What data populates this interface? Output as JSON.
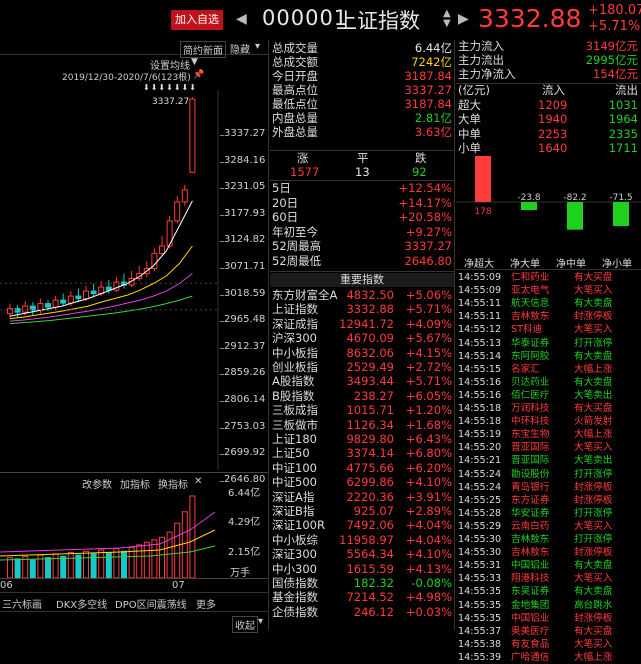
{
  "header": {
    "add_label": "加入自选",
    "code": "000001",
    "name": "上证指数",
    "price": "3332.88",
    "change": "+180.07",
    "change_pct": "+5.71%"
  },
  "chart": {
    "tabs": [
      "简约新面",
      "隐藏"
    ],
    "settings_label": "设置均线",
    "date_range": "2019/12/30-2020/7/6(123根)",
    "price_marker": "3337.27",
    "y_labels": [
      "3337.27",
      "3284.16",
      "3231.05",
      "3177.93",
      "3124.82",
      "3071.71",
      "3018.59",
      "2965.48",
      "2912.37",
      "2859.26",
      "2806.14",
      "2753.03",
      "2699.92",
      "2646.80"
    ],
    "sub_tabs": [
      "改参数",
      "加指标",
      "换指标"
    ],
    "vol_labels": [
      "6.44亿",
      "4.29亿",
      "2.15亿",
      "万手"
    ],
    "x_labels": [
      "06",
      "07"
    ],
    "bottom_tabs": [
      "三六标画",
      "DKX多空线",
      "DPO区间震荡线",
      "更多"
    ],
    "collapse_label": "收起"
  },
  "stats": [
    {
      "label": "总成交量",
      "value": "6.44亿",
      "color": "white"
    },
    {
      "label": "总成交额",
      "value": "7242亿",
      "color": "yellow"
    },
    {
      "label": "今日开盘",
      "value": "3187.84",
      "color": "red"
    },
    {
      "label": "最高点位",
      "value": "3337.27",
      "color": "red"
    },
    {
      "label": "最低点位",
      "value": "3187.84",
      "color": "red"
    },
    {
      "label": "内盘总量",
      "value": "2.81亿",
      "color": "green"
    },
    {
      "label": "外盘总量",
      "value": "3.63亿",
      "color": "red"
    }
  ],
  "adv": {
    "labels": [
      "涨",
      "平",
      "跌"
    ],
    "values": [
      "1577",
      "13",
      "92"
    ]
  },
  "perf": [
    {
      "label": "5日",
      "value": "+12.54%"
    },
    {
      "label": "20日",
      "value": "+14.17%"
    },
    {
      "label": "60日",
      "value": "+20.58%"
    },
    {
      "label": "年初至今",
      "value": "+9.27%"
    },
    {
      "label": "52周最高",
      "value": "3337.27"
    },
    {
      "label": "52周最低",
      "value": "2646.80"
    }
  ],
  "index_title": "重要指数",
  "indices": [
    {
      "name": "东方财富全A",
      "price": "4832.50",
      "pct": "+5.06%"
    },
    {
      "name": "上证指数",
      "price": "3332.88",
      "pct": "+5.71%"
    },
    {
      "name": "深证成指",
      "price": "12941.72",
      "pct": "+4.09%"
    },
    {
      "name": "沪深300",
      "price": "4670.09",
      "pct": "+5.67%"
    },
    {
      "name": "中小板指",
      "price": "8632.06",
      "pct": "+4.15%"
    },
    {
      "name": "创业板指",
      "price": "2529.49",
      "pct": "+2.72%"
    },
    {
      "name": "A股指数",
      "price": "3493.44",
      "pct": "+5.71%"
    },
    {
      "name": "B股指数",
      "price": "238.27",
      "pct": "+6.05%"
    },
    {
      "name": "三板成指",
      "price": "1015.71",
      "pct": "+1.20%"
    },
    {
      "name": "三板做市",
      "price": "1126.34",
      "pct": "+1.68%"
    },
    {
      "name": "上证180",
      "price": "9829.80",
      "pct": "+6.43%"
    },
    {
      "name": "上证50",
      "price": "3374.14",
      "pct": "+6.80%"
    },
    {
      "name": "中证100",
      "price": "4775.66",
      "pct": "+6.20%"
    },
    {
      "name": "中证500",
      "price": "6299.86",
      "pct": "+4.10%"
    },
    {
      "name": "深证A指",
      "price": "2220.36",
      "pct": "+3.91%"
    },
    {
      "name": "深证B指",
      "price": "925.07",
      "pct": "+2.89%"
    },
    {
      "name": "深证100R",
      "price": "7492.06",
      "pct": "+4.04%"
    },
    {
      "name": "中小板综",
      "price": "11958.97",
      "pct": "+4.04%"
    },
    {
      "name": "深证300",
      "price": "5564.34",
      "pct": "+4.10%"
    },
    {
      "name": "中小300",
      "price": "1615.59",
      "pct": "+4.13%"
    },
    {
      "name": "国债指数",
      "price": "182.32",
      "pct": "-0.08%"
    },
    {
      "name": "基金指数",
      "price": "7214.52",
      "pct": "+4.98%"
    },
    {
      "name": "企债指数",
      "price": "246.12",
      "pct": "+0.03%"
    }
  ],
  "flow": [
    {
      "label": "主力流入",
      "value": "3149亿元",
      "color": "red"
    },
    {
      "label": "主力流出",
      "value": "2995亿元",
      "color": "green"
    },
    {
      "label": "主力净流入",
      "value": "154亿元",
      "color": "red"
    }
  ],
  "flow_table": {
    "headers": [
      "(亿元)",
      "流入",
      "流出"
    ],
    "rows": [
      {
        "label": "超大",
        "in": "1209",
        "out": "1031"
      },
      {
        "label": "大单",
        "in": "1940",
        "out": "1964"
      },
      {
        "label": "中单",
        "in": "2253",
        "out": "2335"
      },
      {
        "label": "小单",
        "in": "1640",
        "out": "1711"
      }
    ]
  },
  "net_bars": {
    "labels": [
      "178",
      "-23.8",
      "-82.2",
      "-71.5"
    ],
    "values": [
      178,
      -23.8,
      -82.2,
      -71.5
    ],
    "categories": [
      "净超大",
      "净大单",
      "净中单",
      "净小单"
    ]
  },
  "trades": [
    {
      "time": "14:55:09",
      "stock": "仁和药业",
      "event": "有大买盘",
      "c": "r"
    },
    {
      "time": "14:55:09",
      "stock": "亚太电气",
      "event": "大笔买入",
      "c": "r"
    },
    {
      "time": "14:55:11",
      "stock": "航天信息",
      "event": "有大卖盘",
      "c": "g"
    },
    {
      "time": "14:55:11",
      "stock": "吉林敖东",
      "event": "封涨停板",
      "c": "r"
    },
    {
      "time": "14:55:12",
      "stock": "ST科迪",
      "event": "大笔买入",
      "c": "r"
    },
    {
      "time": "14:55:13",
      "stock": "华泰证券",
      "event": "打开涨停",
      "c": "g"
    },
    {
      "time": "14:55:14",
      "stock": "东阿阿胶",
      "event": "有大卖盘",
      "c": "g"
    },
    {
      "time": "14:55:15",
      "stock": "名家汇",
      "event": "大幅上涨",
      "c": "r"
    },
    {
      "time": "14:55:16",
      "stock": "贝达药业",
      "event": "有大卖盘",
      "c": "g"
    },
    {
      "time": "14:55:16",
      "stock": "佰仁医疗",
      "event": "大笔卖出",
      "c": "g"
    },
    {
      "time": "14:55:18",
      "stock": "万润科技",
      "event": "有大买盘",
      "c": "r"
    },
    {
      "time": "14:55:18",
      "stock": "中环科技",
      "event": "火箭发射",
      "c": "r"
    },
    {
      "time": "14:55:19",
      "stock": "东宝生物",
      "event": "大幅上涨",
      "c": "r"
    },
    {
      "time": "14:55:20",
      "stock": "晋亚国际",
      "event": "大笔买入",
      "c": "r"
    },
    {
      "time": "14:55:21",
      "stock": "晋亚国际",
      "event": "大笔卖出",
      "c": "g"
    },
    {
      "time": "14:55:24",
      "stock": "勘设股份",
      "event": "打开涨停",
      "c": "g"
    },
    {
      "time": "14:55:24",
      "stock": "青岛银行",
      "event": "封涨停板",
      "c": "r"
    },
    {
      "time": "14:55:25",
      "stock": "东方证券",
      "event": "封涨停板",
      "c": "r"
    },
    {
      "time": "14:55:28",
      "stock": "华安证券",
      "event": "打开涨停",
      "c": "g"
    },
    {
      "time": "14:55:29",
      "stock": "云南白药",
      "event": "大笔买入",
      "c": "r"
    },
    {
      "time": "14:55:30",
      "stock": "吉林敖东",
      "event": "打开涨停",
      "c": "g"
    },
    {
      "time": "14:55:30",
      "stock": "吉林敖东",
      "event": "封涨停板",
      "c": "r"
    },
    {
      "time": "14:55:31",
      "stock": "中国铝业",
      "event": "有大卖盘",
      "c": "g"
    },
    {
      "time": "14:55:33",
      "stock": "翔港科技",
      "event": "大笔买入",
      "c": "r"
    },
    {
      "time": "14:55:35",
      "stock": "东吴证券",
      "event": "有大卖盘",
      "c": "g"
    },
    {
      "time": "14:55:35",
      "stock": "金地集团",
      "event": "高台跳水",
      "c": "g"
    },
    {
      "time": "14:55:35",
      "stock": "中国铝业",
      "event": "封涨停板",
      "c": "r"
    },
    {
      "time": "14:55:37",
      "stock": "奥美医疗",
      "event": "有大买盘",
      "c": "r"
    },
    {
      "time": "14:55:38",
      "stock": "有友食品",
      "event": "大笔买入",
      "c": "r"
    },
    {
      "time": "14:55:39",
      "stock": "广哈通信",
      "event": "大幅上涨",
      "c": "r"
    }
  ]
}
